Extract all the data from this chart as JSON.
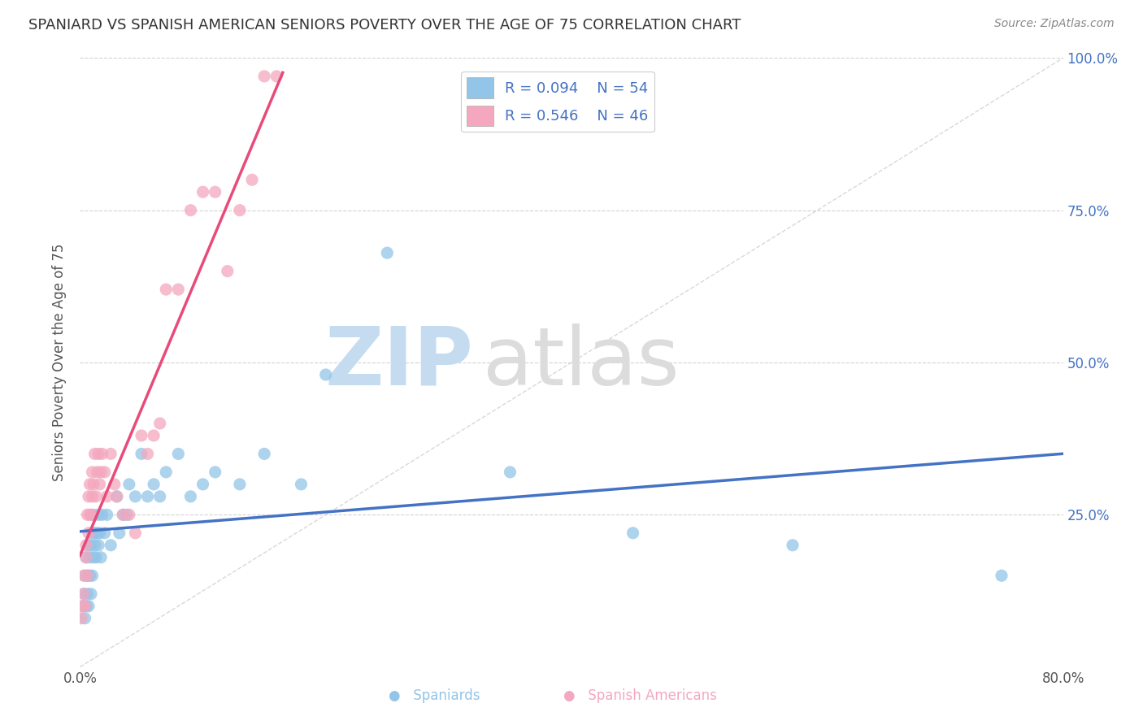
{
  "title": "SPANIARD VS SPANISH AMERICAN SENIORS POVERTY OVER THE AGE OF 75 CORRELATION CHART",
  "source": "Source: ZipAtlas.com",
  "ylabel": "Seniors Poverty Over the Age of 75",
  "xlim": [
    0.0,
    0.8
  ],
  "ylim": [
    0.0,
    1.0
  ],
  "xtick_positions": [
    0.0,
    0.1,
    0.2,
    0.3,
    0.4,
    0.5,
    0.6,
    0.7,
    0.8
  ],
  "xticklabels": [
    "0.0%",
    "",
    "",
    "",
    "",
    "",
    "",
    "",
    "80.0%"
  ],
  "ytick_positions": [
    0.0,
    0.25,
    0.5,
    0.75,
    1.0
  ],
  "yticklabels_right": [
    "",
    "25.0%",
    "50.0%",
    "75.0%",
    "100.0%"
  ],
  "legend_R1": "R = 0.094",
  "legend_N1": "N = 54",
  "legend_R2": "R = 0.546",
  "legend_N2": "N = 46",
  "color_spaniards": "#92C5E8",
  "color_spanish_americans": "#F4A7BE",
  "color_line1": "#4472C4",
  "color_line2": "#E84B7A",
  "color_diag": "#C8C8C8",
  "color_legend_text": "#4472C4",
  "color_grid": "#C8C8C8",
  "spaniards_x": [
    0.002,
    0.003,
    0.004,
    0.004,
    0.005,
    0.005,
    0.006,
    0.006,
    0.007,
    0.007,
    0.008,
    0.008,
    0.009,
    0.009,
    0.01,
    0.01,
    0.011,
    0.011,
    0.012,
    0.012,
    0.013,
    0.014,
    0.015,
    0.015,
    0.016,
    0.017,
    0.018,
    0.02,
    0.022,
    0.025,
    0.03,
    0.032,
    0.035,
    0.038,
    0.04,
    0.045,
    0.05,
    0.055,
    0.06,
    0.065,
    0.07,
    0.08,
    0.09,
    0.1,
    0.11,
    0.13,
    0.15,
    0.18,
    0.2,
    0.25,
    0.35,
    0.45,
    0.58,
    0.75
  ],
  "spaniards_y": [
    0.1,
    0.12,
    0.08,
    0.15,
    0.1,
    0.18,
    0.12,
    0.15,
    0.1,
    0.2,
    0.15,
    0.18,
    0.12,
    0.2,
    0.15,
    0.22,
    0.18,
    0.25,
    0.2,
    0.22,
    0.18,
    0.22,
    0.2,
    0.25,
    0.22,
    0.18,
    0.25,
    0.22,
    0.25,
    0.2,
    0.28,
    0.22,
    0.25,
    0.25,
    0.3,
    0.28,
    0.35,
    0.28,
    0.3,
    0.28,
    0.32,
    0.35,
    0.28,
    0.3,
    0.32,
    0.3,
    0.35,
    0.3,
    0.48,
    0.68,
    0.32,
    0.22,
    0.2,
    0.15
  ],
  "spanish_americans_x": [
    0.001,
    0.002,
    0.003,
    0.003,
    0.004,
    0.005,
    0.005,
    0.006,
    0.006,
    0.007,
    0.007,
    0.008,
    0.008,
    0.009,
    0.01,
    0.01,
    0.011,
    0.012,
    0.013,
    0.014,
    0.015,
    0.016,
    0.017,
    0.018,
    0.02,
    0.022,
    0.025,
    0.028,
    0.03,
    0.035,
    0.04,
    0.045,
    0.05,
    0.055,
    0.06,
    0.065,
    0.07,
    0.08,
    0.09,
    0.1,
    0.11,
    0.12,
    0.13,
    0.14,
    0.15,
    0.16
  ],
  "spanish_americans_y": [
    0.08,
    0.1,
    0.12,
    0.15,
    0.1,
    0.18,
    0.2,
    0.15,
    0.25,
    0.22,
    0.28,
    0.25,
    0.3,
    0.25,
    0.32,
    0.28,
    0.3,
    0.35,
    0.28,
    0.32,
    0.35,
    0.3,
    0.32,
    0.35,
    0.32,
    0.28,
    0.35,
    0.3,
    0.28,
    0.25,
    0.25,
    0.22,
    0.38,
    0.35,
    0.38,
    0.4,
    0.62,
    0.62,
    0.75,
    0.78,
    0.78,
    0.65,
    0.75,
    0.8,
    0.97,
    0.97
  ]
}
